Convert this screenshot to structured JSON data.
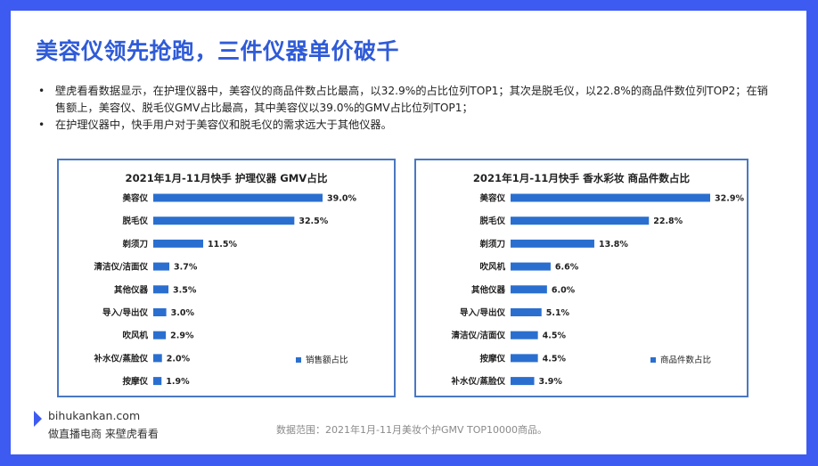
{
  "slide": {
    "title": "美容仪领先抢跑，三件仪器单价破千",
    "bullets": [
      "壁虎看看数据显示，在护理仪器中，美容仪的商品件数占比最高，以32.9%的占比位列TOP1；其次是脱毛仪，以22.8%的商品件数位列TOP2；在销售额上，美容仪、脱毛仪GMV占比最高，其中美容仪以39.0%的GMV占比位列TOP1；",
      "在护理仪器中，快手用户对于美容仪和脱毛仪的需求远大于其他仪器。"
    ],
    "bullet_symbol": "•",
    "footer": {
      "site": "bihukankan.com",
      "tagline": "做直播电商 来壁虎看看",
      "source": "数据范围：2021年1月-11月美妆个护GMV TOP10000商品。"
    }
  },
  "colors": {
    "bar": "#2a6fd0",
    "accent": "#3d5bf1",
    "title": "#2f5bd8",
    "panel_border": "#4a78c2"
  },
  "chart_data": [
    {
      "type": "bar",
      "orientation": "horizontal",
      "title": "2021年1月-11月快手 护理仪器 GMV占比",
      "legend": "销售额占比",
      "legend_position": "right",
      "categories": [
        "美容仪",
        "脱毛仪",
        "剃须刀",
        "清洁仪/洁面仪",
        "其他仪器",
        "导入/导出仪",
        "吹风机",
        "补水仪/蒸脸仪",
        "按摩仪"
      ],
      "values": [
        39.0,
        32.5,
        11.5,
        3.7,
        3.5,
        3.0,
        2.9,
        2.0,
        1.9
      ],
      "labels": [
        "39.0%",
        "32.5%",
        "11.5%",
        "3.7%",
        "3.5%",
        "3.0%",
        "2.9%",
        "2.0%",
        "1.9%"
      ],
      "xlim": [
        0,
        39.0
      ]
    },
    {
      "type": "bar",
      "orientation": "horizontal",
      "title": "2021年1月-11月快手 香水彩妆 商品件数占比",
      "legend": "商品件数占比",
      "legend_position": "right",
      "categories": [
        "美容仪",
        "脱毛仪",
        "剃须刀",
        "吹风机",
        "其他仪器",
        "导入/导出仪",
        "清洁仪/洁面仪",
        "按摩仪",
        "补水仪/蒸脸仪"
      ],
      "values": [
        32.9,
        22.8,
        13.8,
        6.6,
        6.0,
        5.1,
        4.5,
        4.5,
        3.9
      ],
      "labels": [
        "32.9%",
        "22.8%",
        "13.8%",
        "6.6%",
        "6.0%",
        "5.1%",
        "4.5%",
        "4.5%",
        "3.9%"
      ],
      "xlim": [
        0,
        32.9
      ]
    }
  ]
}
